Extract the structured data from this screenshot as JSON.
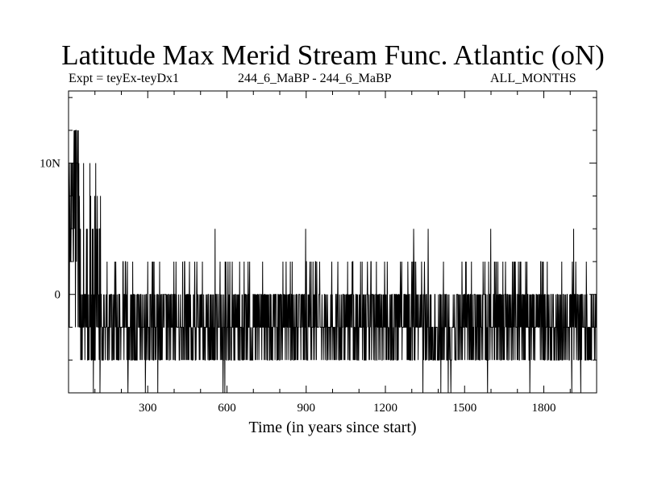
{
  "chart_data": {
    "type": "line",
    "title": "Latitude Max Merid Stream Func. Atlantic (oN)",
    "subtitle_left": "Expt = teyEx-teyDx1",
    "subtitle_center": "244_6_MaBP - 244_6_MaBP",
    "subtitle_right": "ALL_MONTHS",
    "xlabel": "Time (in years since start)",
    "ylabel": "",
    "xlim": [
      0,
      2000
    ],
    "ylim": [
      -7.5,
      15.5
    ],
    "x_ticks": [
      300,
      600,
      900,
      1200,
      1500,
      1800
    ],
    "x_tick_labels": [
      "300",
      "600",
      "900",
      "1200",
      "1500",
      "1800"
    ],
    "y_ticks": [
      0,
      10
    ],
    "y_tick_labels": [
      "0",
      "10N"
    ],
    "series": [
      {
        "name": "latitude max",
        "levels": [
          -5,
          -2.5,
          0,
          2.5,
          5,
          7.5,
          10,
          12.5,
          -7.5
        ],
        "description": "Noisy time series of latitude of maximum meridional stream function; early spin-up values near 10N then fluctuating between -5 and 2.5"
      }
    ]
  },
  "colors": {
    "line": "#000000",
    "background": "#ffffff",
    "axis": "#000000"
  }
}
